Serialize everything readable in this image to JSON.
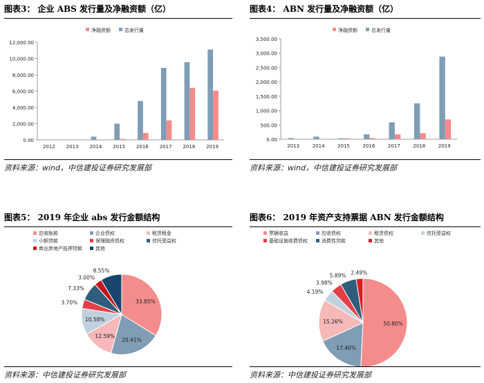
{
  "colors": {
    "blue": "#7f9db4",
    "pink": "#f48c8c",
    "axis": "#999999"
  },
  "panels": [
    {
      "title": "图表3：  企业 ABS 发行量及净融资额（亿）",
      "source": "资料来源：wind，中信建投证券研究发展部"
    },
    {
      "title": "图表4：  ABN 发行量及净融资额（亿）",
      "source": "资料来源：wind，中信建投证券研究发展部"
    },
    {
      "title": "图表5：  2019 年企业 abs 发行金额结构",
      "source": "资料来源：中信建投证券研究发展部"
    },
    {
      "title": "图表6：  2019 年资产支持票据 ABN 发行金额结构",
      "source": "资料来源：中信建投证券研究发展部"
    }
  ],
  "chart_data": [
    {
      "type": "bar",
      "categories": [
        "2012",
        "2013",
        "2014",
        "2015",
        "2016",
        "2017",
        "2018",
        "2019"
      ],
      "series": [
        {
          "name": "总发行量",
          "color": "#7f9db4",
          "values": [
            30,
            30,
            400,
            2000,
            4780,
            8850,
            9550,
            11100
          ]
        },
        {
          "name": "净融资额",
          "color": "#f48c8c",
          "values": [
            0,
            0,
            0,
            120,
            850,
            2400,
            6400,
            6050
          ]
        }
      ],
      "legend": [
        "净融资额",
        "总发行量"
      ],
      "legend_colors": [
        "#f48c8c",
        "#7f9db4"
      ],
      "yticks": [
        "0.00",
        "2,000.00",
        "4,000.00",
        "6,000.00",
        "8,000.00",
        "10,000.00",
        "12,000.00"
      ],
      "ylim": [
        0,
        12000
      ]
    },
    {
      "type": "bar",
      "categories": [
        "2013",
        "2014",
        "2015",
        "2016",
        "2017",
        "2018",
        "2019"
      ],
      "series": [
        {
          "name": "总发行量",
          "color": "#7f9db4",
          "values": [
            40,
            90,
            30,
            170,
            590,
            1250,
            2880
          ]
        },
        {
          "name": "净融资额",
          "color": "#f48c8c",
          "values": [
            0,
            10,
            30,
            40,
            170,
            210,
            690
          ]
        }
      ],
      "legend": [
        "净融资额",
        "总发行量"
      ],
      "legend_colors": [
        "#f48c8c",
        "#7f9db4"
      ],
      "yticks": [
        "0.00",
        "500.00",
        "1,000.00",
        "1,500.00",
        "2,000.00",
        "2,500.00",
        "3,000.00",
        "3,500.00"
      ],
      "ylim": [
        0,
        3500
      ]
    },
    {
      "type": "pie",
      "slices": [
        {
          "name": "应收账款",
          "value": 33.85,
          "label": "33.85%",
          "color": "#f48c8c"
        },
        {
          "name": "企业债权",
          "value": 20.41,
          "label": "20.41%",
          "color": "#7f9db4"
        },
        {
          "name": "租赁租金",
          "value": 12.59,
          "label": "12.59%",
          "color": "#f6b8b8"
        },
        {
          "name": "小额贷款",
          "value": 10.58,
          "label": "10.58%",
          "color": "#c2d1df"
        },
        {
          "name": "保理融资债权",
          "value": 3.7,
          "label": "3.70%",
          "color": "#e53f46"
        },
        {
          "name": "信托受益权",
          "value": 7.33,
          "label": "7.33%",
          "color": "#2f5d7c"
        },
        {
          "name": "商业房地产抵押贷款",
          "value": 3.0,
          "label": "3.00%",
          "color": "#c5161d"
        },
        {
          "name": "其他",
          "value": 8.55,
          "label": "8.55%",
          "color": "#17456b"
        }
      ],
      "legend": [
        "应收账款",
        "企业债权",
        "租赁租金",
        "小额贷款",
        "保理融资债权",
        "信托受益权",
        "商业房地产抵押贷款",
        "其他"
      ]
    },
    {
      "type": "pie",
      "slices": [
        {
          "name": "票据收益",
          "value": 50.8,
          "label": "50.80%",
          "color": "#f48c8c"
        },
        {
          "name": "应收债权",
          "value": 17.4,
          "label": "17.40%",
          "color": "#7f9db4"
        },
        {
          "name": "租赁债权",
          "value": 15.26,
          "label": "15.26%",
          "color": "#f6b8b8"
        },
        {
          "name": "信托受益权",
          "value": 4.19,
          "label": "4.19%",
          "color": "#c2d1df"
        },
        {
          "name": "基础设施收费债权",
          "value": 3.98,
          "label": "3.98%",
          "color": "#e53f46"
        },
        {
          "name": "消费性贷款",
          "value": 5.89,
          "label": "5.89%",
          "color": "#2f5d7c"
        },
        {
          "name": "其他",
          "value": 2.49,
          "label": "2.49%",
          "color": "#dd1c24"
        }
      ],
      "legend": [
        "票据收益",
        "应收债权",
        "租赁债权",
        "信托受益权",
        "基础设施收费债权",
        "消费性贷款",
        "其他"
      ]
    }
  ]
}
